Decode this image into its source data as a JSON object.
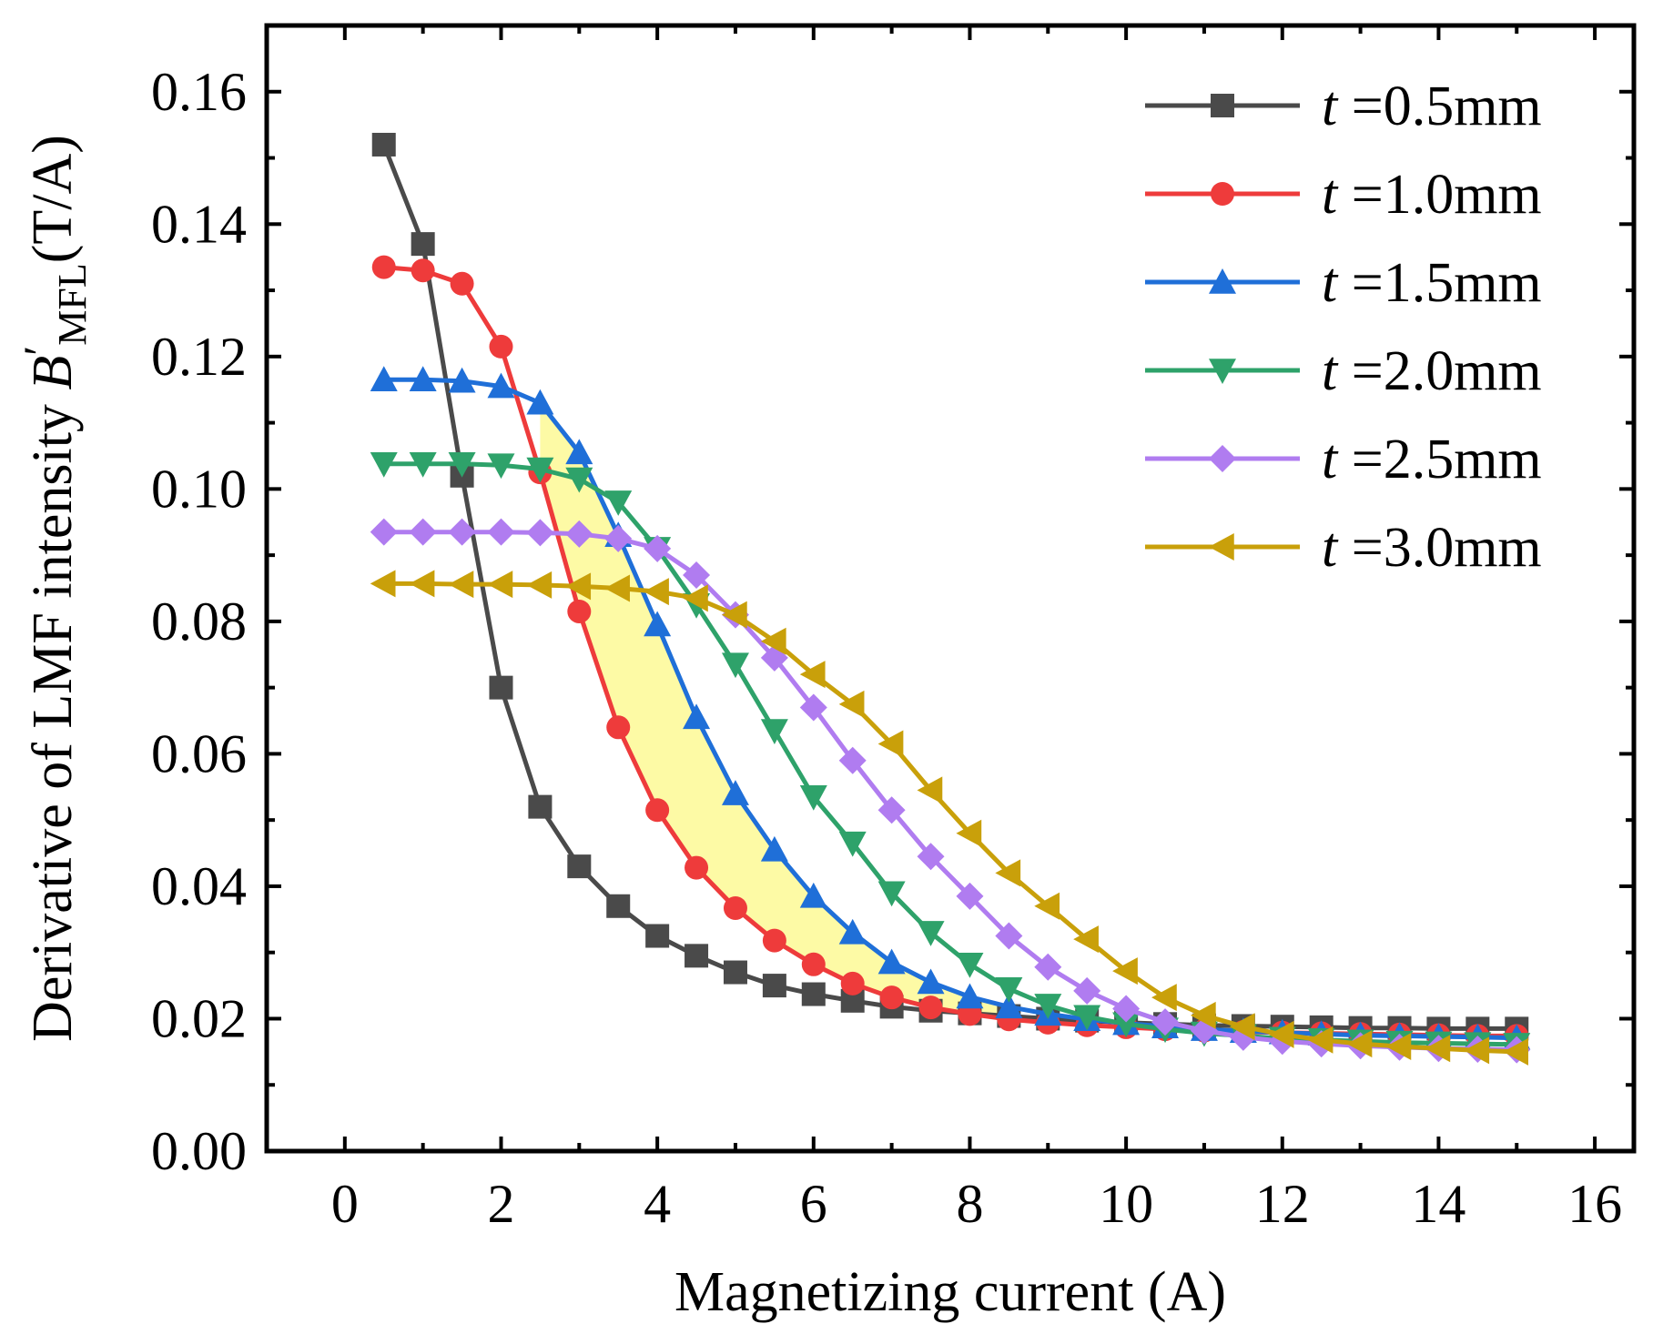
{
  "chart_data": {
    "type": "line",
    "xlabel": "Magnetizing current (A)",
    "ylabel": {
      "prefix": "Derivative of  LMF intensity ",
      "symbol": "B",
      "prime": "′",
      "subscript": "MFL",
      "unit": "(T/A)"
    },
    "xlim": [
      -1,
      16.5
    ],
    "ylim": [
      0,
      0.17
    ],
    "xticks": [
      0,
      2,
      4,
      6,
      8,
      10,
      12,
      14,
      16
    ],
    "xtick_labels": [
      "0",
      "2",
      "4",
      "6",
      "8",
      "10",
      "12",
      "14",
      "16"
    ],
    "yticks": [
      0.0,
      0.02,
      0.04,
      0.06,
      0.08,
      0.1,
      0.12,
      0.14,
      0.16
    ],
    "ytick_labels": [
      "0.00",
      "0.02",
      "0.04",
      "0.06",
      "0.08",
      "0.10",
      "0.12",
      "0.14",
      "0.16"
    ],
    "legend_position": "top-right",
    "shaded_region": {
      "between": [
        "t =1.0mm",
        "t =1.5mm"
      ],
      "color": "#fdfaa5"
    },
    "x": [
      0.5,
      1.0,
      1.5,
      2.0,
      2.5,
      3.0,
      3.5,
      4.0,
      4.5,
      5.0,
      5.5,
      6.0,
      6.5,
      7.0,
      7.5,
      8.0,
      8.5,
      9.0,
      9.5,
      10.0,
      10.5,
      11.0,
      11.5,
      12.0,
      12.5,
      13.0,
      13.5,
      14.0,
      14.5,
      15.0
    ],
    "series": [
      {
        "name": "t =0.5mm",
        "var": "t",
        "value_label": " =0.5mm",
        "color": "#4a4a4a",
        "marker": "square",
        "values": [
          0.152,
          0.137,
          0.102,
          0.07,
          0.052,
          0.043,
          0.037,
          0.0325,
          0.0295,
          0.027,
          0.025,
          0.0237,
          0.0227,
          0.0218,
          0.0212,
          0.0208,
          0.0204,
          0.02,
          0.0197,
          0.0194,
          0.0192,
          0.019,
          0.0189,
          0.0188,
          0.0187,
          0.0186,
          0.0186,
          0.0185,
          0.0185,
          0.0185
        ]
      },
      {
        "name": "t =1.0mm",
        "var": "t",
        "value_label": " =1.0mm",
        "color": "#ee3b3b",
        "marker": "circle",
        "values": [
          0.1335,
          0.133,
          0.131,
          0.1215,
          0.1025,
          0.0815,
          0.064,
          0.0515,
          0.0428,
          0.0367,
          0.0318,
          0.0282,
          0.0253,
          0.0232,
          0.0217,
          0.0207,
          0.0199,
          0.0194,
          0.019,
          0.0187,
          0.0184,
          0.0182,
          0.018,
          0.0179,
          0.0178,
          0.0177,
          0.0176,
          0.0175,
          0.0174,
          0.0174
        ]
      },
      {
        "name": "t =1.5mm",
        "var": "t",
        "value_label": " =1.5mm",
        "color": "#1f6fd8",
        "marker": "triangle-up",
        "values": [
          0.1165,
          0.1165,
          0.1163,
          0.1155,
          0.113,
          0.1055,
          0.093,
          0.0795,
          0.0655,
          0.054,
          0.0455,
          0.0385,
          0.033,
          0.0285,
          0.0255,
          0.0233,
          0.0218,
          0.0207,
          0.0199,
          0.0193,
          0.0188,
          0.0184,
          0.0181,
          0.0179,
          0.0177,
          0.0175,
          0.0174,
          0.0173,
          0.0172,
          0.0171
        ]
      },
      {
        "name": "t =2.0mm",
        "var": "t",
        "value_label": " =2.0mm",
        "color": "#2ea26a",
        "marker": "triangle-down",
        "values": [
          0.1038,
          0.1038,
          0.1038,
          0.1036,
          0.103,
          0.1015,
          0.098,
          0.091,
          0.0825,
          0.0735,
          0.0635,
          0.0535,
          0.0465,
          0.039,
          0.033,
          0.0282,
          0.0245,
          0.022,
          0.0203,
          0.0192,
          0.0184,
          0.0178,
          0.0174,
          0.017,
          0.0168,
          0.0166,
          0.0164,
          0.0163,
          0.0162,
          0.0161
        ]
      },
      {
        "name": "t =2.5mm",
        "var": "t",
        "value_label": " =2.5mm",
        "color": "#b07cf0",
        "marker": "diamond",
        "values": [
          0.0935,
          0.0935,
          0.0935,
          0.0935,
          0.0934,
          0.0932,
          0.0925,
          0.091,
          0.087,
          0.081,
          0.0745,
          0.067,
          0.059,
          0.0515,
          0.0445,
          0.0385,
          0.0325,
          0.0278,
          0.0242,
          0.0215,
          0.0195,
          0.0182,
          0.0172,
          0.0166,
          0.0162,
          0.0159,
          0.0157,
          0.0155,
          0.0154,
          0.0153
        ]
      },
      {
        "name": "t =3.0mm",
        "var": "t",
        "value_label": " =3.0mm",
        "color": "#c9a00a",
        "marker": "triangle-left",
        "values": [
          0.0857,
          0.0857,
          0.0856,
          0.0856,
          0.0855,
          0.0853,
          0.085,
          0.0845,
          0.0835,
          0.081,
          0.077,
          0.072,
          0.0675,
          0.0615,
          0.0545,
          0.048,
          0.042,
          0.037,
          0.032,
          0.0272,
          0.0232,
          0.0205,
          0.0188,
          0.0176,
          0.0168,
          0.0162,
          0.0158,
          0.0155,
          0.0152,
          0.015
        ]
      }
    ]
  }
}
